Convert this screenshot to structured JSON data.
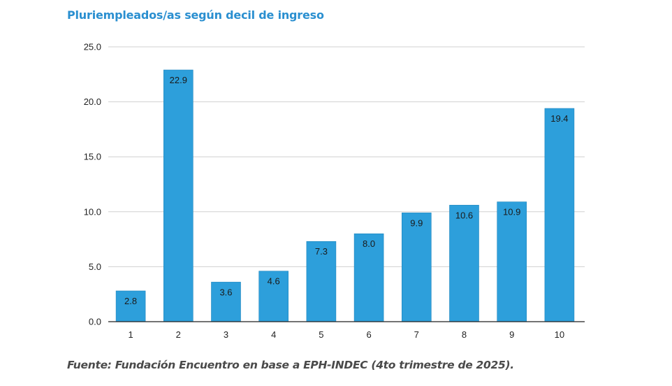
{
  "title": "Pluriempleados/as según decil de ingreso",
  "source": "Fuente: Fundación Encuentro en base a EPH-INDEC (4to trimestre de 2025).",
  "colors": {
    "bar": "#2d9fdb",
    "title": "#2a8fd0",
    "grid": "#d0d0d0",
    "axis": "#222222"
  },
  "chart_data": {
    "type": "bar",
    "categories": [
      "1",
      "2",
      "3",
      "4",
      "5",
      "6",
      "7",
      "8",
      "9",
      "10"
    ],
    "values": [
      2.8,
      22.9,
      3.6,
      4.6,
      7.3,
      8.0,
      9.9,
      10.6,
      10.9,
      19.4
    ],
    "data_labels": [
      "2.8",
      "22.9",
      "3.6",
      "4.6",
      "7.3",
      "8.0",
      "9.9",
      "10.6",
      "10.9",
      "19.4"
    ],
    "title": "Pluriempleados/as según decil de ingreso",
    "xlabel": "",
    "ylabel": "",
    "ylim": [
      0,
      25
    ],
    "yticks": [
      "0.0",
      "5.0",
      "10.0",
      "15.0",
      "20.0",
      "25.0"
    ],
    "grid": true,
    "legend": "none"
  }
}
